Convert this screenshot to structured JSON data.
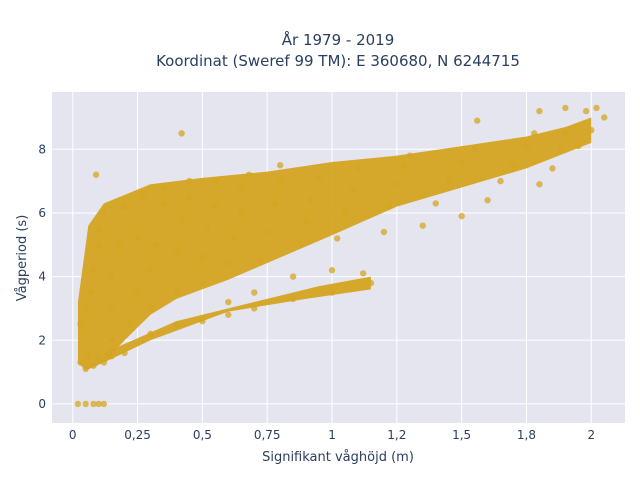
{
  "chart_data": {
    "type": "scatter",
    "title_line1": "År 1979 - 2019",
    "title_line2": "Koordinat (Sweref 99 TM): E 360680, N 6244715",
    "xlabel": "Signifikant våghöjd (m)",
    "ylabel": "Vågperiod (s)",
    "xlim": [
      -0.08,
      2.13
    ],
    "ylim": [
      -0.6,
      9.8
    ],
    "x_ticks": [
      0,
      0.25,
      0.5,
      0.75,
      1,
      1.25,
      1.5,
      1.75,
      2
    ],
    "x_tick_labels": [
      "0",
      "0,25",
      "0,5",
      "0,75",
      "1",
      "1,2",
      "1,5",
      "1,8",
      "2"
    ],
    "y_ticks": [
      0,
      2,
      4,
      6,
      8
    ],
    "y_tick_labels": [
      "0",
      "2",
      "4",
      "6",
      "8"
    ],
    "grid": true,
    "colors": {
      "marker": "#d4a421",
      "plot_bg": "#e5e5f0",
      "grid": "#ffffff",
      "text": "#2a3f5f"
    },
    "series": [
      {
        "marker_opacity": 0.75,
        "points": [
          [
            0.02,
            0.0
          ],
          [
            0.05,
            0.0
          ],
          [
            0.08,
            0.0
          ],
          [
            0.1,
            0.0
          ],
          [
            0.12,
            0.0
          ],
          [
            0.03,
            1.3
          ],
          [
            0.05,
            1.1
          ],
          [
            0.06,
            1.5
          ],
          [
            0.08,
            1.2
          ],
          [
            0.1,
            1.4
          ],
          [
            0.12,
            1.3
          ],
          [
            0.15,
            1.5
          ],
          [
            0.2,
            1.6
          ],
          [
            0.03,
            2.5
          ],
          [
            0.05,
            3.0
          ],
          [
            0.07,
            3.5
          ],
          [
            0.08,
            4.2
          ],
          [
            0.1,
            5.0
          ],
          [
            0.1,
            5.5
          ],
          [
            0.12,
            6.0
          ],
          [
            0.09,
            7.2
          ],
          [
            0.15,
            2.0
          ],
          [
            0.15,
            3.0
          ],
          [
            0.15,
            4.0
          ],
          [
            0.18,
            5.0
          ],
          [
            0.2,
            6.2
          ],
          [
            0.22,
            2.5
          ],
          [
            0.25,
            3.5
          ],
          [
            0.25,
            5.2
          ],
          [
            0.27,
            6.5
          ],
          [
            0.3,
            2.2
          ],
          [
            0.3,
            3.0
          ],
          [
            0.3,
            4.2
          ],
          [
            0.32,
            5.0
          ],
          [
            0.35,
            6.3
          ],
          [
            0.35,
            6.8
          ],
          [
            0.4,
            2.5
          ],
          [
            0.4,
            3.5
          ],
          [
            0.4,
            4.8
          ],
          [
            0.42,
            5.8
          ],
          [
            0.45,
            6.5
          ],
          [
            0.45,
            7.0
          ],
          [
            0.42,
            8.5
          ],
          [
            0.5,
            2.6
          ],
          [
            0.5,
            3.8
          ],
          [
            0.5,
            4.6
          ],
          [
            0.52,
            5.5
          ],
          [
            0.55,
            6.2
          ],
          [
            0.55,
            7.0
          ],
          [
            0.6,
            2.8
          ],
          [
            0.6,
            3.2
          ],
          [
            0.6,
            4.4
          ],
          [
            0.62,
            5.2
          ],
          [
            0.65,
            6.0
          ],
          [
            0.65,
            6.8
          ],
          [
            0.68,
            7.2
          ],
          [
            0.7,
            3.0
          ],
          [
            0.7,
            3.5
          ],
          [
            0.72,
            4.5
          ],
          [
            0.75,
            5.4
          ],
          [
            0.78,
            6.3
          ],
          [
            0.8,
            7.0
          ],
          [
            0.8,
            7.5
          ],
          [
            0.85,
            3.3
          ],
          [
            0.85,
            4.0
          ],
          [
            0.88,
            5.0
          ],
          [
            0.9,
            5.7
          ],
          [
            0.92,
            6.4
          ],
          [
            0.95,
            7.1
          ],
          [
            1.0,
            3.5
          ],
          [
            1.0,
            4.2
          ],
          [
            1.02,
            5.2
          ],
          [
            1.05,
            6.0
          ],
          [
            1.08,
            6.7
          ],
          [
            1.1,
            7.4
          ],
          [
            1.12,
            4.1
          ],
          [
            1.15,
            3.8
          ],
          [
            1.2,
            5.4
          ],
          [
            1.22,
            6.2
          ],
          [
            1.25,
            6.9
          ],
          [
            1.28,
            7.5
          ],
          [
            1.3,
            7.8
          ],
          [
            1.35,
            5.6
          ],
          [
            1.4,
            6.3
          ],
          [
            1.45,
            7.0
          ],
          [
            1.5,
            7.6
          ],
          [
            1.5,
            5.9
          ],
          [
            1.55,
            8.0
          ],
          [
            1.56,
            8.9
          ],
          [
            1.6,
            6.4
          ],
          [
            1.65,
            7.0
          ],
          [
            1.7,
            7.5
          ],
          [
            1.75,
            8.1
          ],
          [
            1.78,
            8.5
          ],
          [
            1.8,
            6.9
          ],
          [
            1.85,
            7.4
          ],
          [
            1.88,
            8.0
          ],
          [
            1.9,
            8.5
          ],
          [
            1.95,
            8.1
          ],
          [
            1.98,
            9.2
          ],
          [
            2.0,
            8.6
          ],
          [
            2.02,
            9.3
          ],
          [
            2.05,
            9.0
          ],
          [
            1.9,
            9.3
          ],
          [
            1.8,
            9.2
          ]
        ]
      }
    ]
  }
}
